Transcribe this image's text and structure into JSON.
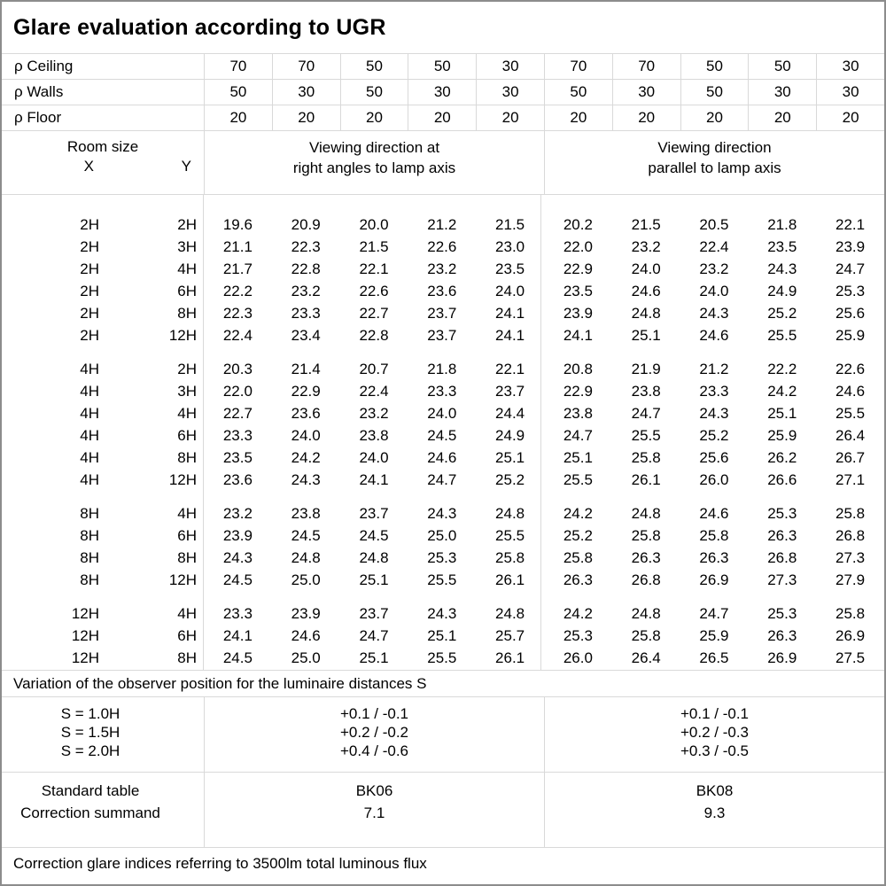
{
  "title": "Glare evaluation according to UGR",
  "reflectance": {
    "ceiling_label": "ρ Ceiling",
    "walls_label": "ρ Walls",
    "floor_label": "ρ Floor",
    "ceiling": [
      "70",
      "70",
      "50",
      "50",
      "30",
      "70",
      "70",
      "50",
      "50",
      "30"
    ],
    "walls": [
      "50",
      "30",
      "50",
      "30",
      "30",
      "50",
      "30",
      "50",
      "30",
      "30"
    ],
    "floor": [
      "20",
      "20",
      "20",
      "20",
      "20",
      "20",
      "20",
      "20",
      "20",
      "20"
    ]
  },
  "header": {
    "room_size_label": "Room size",
    "x_label": "X",
    "y_label": "Y",
    "left_heading_line1": "Viewing direction at",
    "left_heading_line2": "right angles to lamp axis",
    "right_heading_line1": "Viewing direction",
    "right_heading_line2": "parallel to lamp axis"
  },
  "ugr_blocks": [
    {
      "x_group": "2H",
      "rows": [
        {
          "x": "2H",
          "y": "2H",
          "values": [
            "19.6",
            "20.9",
            "20.0",
            "21.2",
            "21.5",
            "20.2",
            "21.5",
            "20.5",
            "21.8",
            "22.1"
          ]
        },
        {
          "x": "2H",
          "y": "3H",
          "values": [
            "21.1",
            "22.3",
            "21.5",
            "22.6",
            "23.0",
            "22.0",
            "23.2",
            "22.4",
            "23.5",
            "23.9"
          ]
        },
        {
          "x": "2H",
          "y": "4H",
          "values": [
            "21.7",
            "22.8",
            "22.1",
            "23.2",
            "23.5",
            "22.9",
            "24.0",
            "23.2",
            "24.3",
            "24.7"
          ]
        },
        {
          "x": "2H",
          "y": "6H",
          "values": [
            "22.2",
            "23.2",
            "22.6",
            "23.6",
            "24.0",
            "23.5",
            "24.6",
            "24.0",
            "24.9",
            "25.3"
          ]
        },
        {
          "x": "2H",
          "y": "8H",
          "values": [
            "22.3",
            "23.3",
            "22.7",
            "23.7",
            "24.1",
            "23.9",
            "24.8",
            "24.3",
            "25.2",
            "25.6"
          ]
        },
        {
          "x": "2H",
          "y": "12H",
          "values": [
            "22.4",
            "23.4",
            "22.8",
            "23.7",
            "24.1",
            "24.1",
            "25.1",
            "24.6",
            "25.5",
            "25.9"
          ]
        }
      ]
    },
    {
      "x_group": "4H",
      "rows": [
        {
          "x": "4H",
          "y": "2H",
          "values": [
            "20.3",
            "21.4",
            "20.7",
            "21.8",
            "22.1",
            "20.8",
            "21.9",
            "21.2",
            "22.2",
            "22.6"
          ]
        },
        {
          "x": "4H",
          "y": "3H",
          "values": [
            "22.0",
            "22.9",
            "22.4",
            "23.3",
            "23.7",
            "22.9",
            "23.8",
            "23.3",
            "24.2",
            "24.6"
          ]
        },
        {
          "x": "4H",
          "y": "4H",
          "values": [
            "22.7",
            "23.6",
            "23.2",
            "24.0",
            "24.4",
            "23.8",
            "24.7",
            "24.3",
            "25.1",
            "25.5"
          ]
        },
        {
          "x": "4H",
          "y": "6H",
          "values": [
            "23.3",
            "24.0",
            "23.8",
            "24.5",
            "24.9",
            "24.7",
            "25.5",
            "25.2",
            "25.9",
            "26.4"
          ]
        },
        {
          "x": "4H",
          "y": "8H",
          "values": [
            "23.5",
            "24.2",
            "24.0",
            "24.6",
            "25.1",
            "25.1",
            "25.8",
            "25.6",
            "26.2",
            "26.7"
          ]
        },
        {
          "x": "4H",
          "y": "12H",
          "values": [
            "23.6",
            "24.3",
            "24.1",
            "24.7",
            "25.2",
            "25.5",
            "26.1",
            "26.0",
            "26.6",
            "27.1"
          ]
        }
      ]
    },
    {
      "x_group": "8H",
      "rows": [
        {
          "x": "8H",
          "y": "4H",
          "values": [
            "23.2",
            "23.8",
            "23.7",
            "24.3",
            "24.8",
            "24.2",
            "24.8",
            "24.6",
            "25.3",
            "25.8"
          ]
        },
        {
          "x": "8H",
          "y": "6H",
          "values": [
            "23.9",
            "24.5",
            "24.5",
            "25.0",
            "25.5",
            "25.2",
            "25.8",
            "25.8",
            "26.3",
            "26.8"
          ]
        },
        {
          "x": "8H",
          "y": "8H",
          "values": [
            "24.3",
            "24.8",
            "24.8",
            "25.3",
            "25.8",
            "25.8",
            "26.3",
            "26.3",
            "26.8",
            "27.3"
          ]
        },
        {
          "x": "8H",
          "y": "12H",
          "values": [
            "24.5",
            "25.0",
            "25.1",
            "25.5",
            "26.1",
            "26.3",
            "26.8",
            "26.9",
            "27.3",
            "27.9"
          ]
        }
      ]
    },
    {
      "x_group": "12H",
      "rows": [
        {
          "x": "12H",
          "y": "4H",
          "values": [
            "23.3",
            "23.9",
            "23.7",
            "24.3",
            "24.8",
            "24.2",
            "24.8",
            "24.7",
            "25.3",
            "25.8"
          ]
        },
        {
          "x": "12H",
          "y": "6H",
          "values": [
            "24.1",
            "24.6",
            "24.7",
            "25.1",
            "25.7",
            "25.3",
            "25.8",
            "25.9",
            "26.3",
            "26.9"
          ]
        },
        {
          "x": "12H",
          "y": "8H",
          "values": [
            "24.5",
            "25.0",
            "25.1",
            "25.5",
            "26.1",
            "26.0",
            "26.4",
            "26.5",
            "26.9",
            "27.5"
          ]
        }
      ]
    }
  ],
  "variation_note": "Variation of the observer position for the luminaire distances S",
  "variation": {
    "s_labels": [
      "S = 1.0H",
      "S = 1.5H",
      "S = 2.0H"
    ],
    "left_values": [
      "+0.1 / -0.1",
      "+0.2 / -0.2",
      "+0.4 / -0.6"
    ],
    "right_values": [
      "+0.1 / -0.1",
      "+0.2 / -0.3",
      "+0.3 / -0.5"
    ]
  },
  "summary": {
    "row1_label": "Standard table",
    "row2_label": "Correction summand",
    "left": {
      "table": "BK06",
      "summand": "7.1"
    },
    "right": {
      "table": "BK08",
      "summand": "9.3"
    }
  },
  "footer_note": "Correction glare indices referring to 3500lm total luminous flux",
  "colors": {
    "grid_line": "#d9d9d9",
    "outer_border": "#8c8c8c",
    "text": "#000000",
    "background": "#ffffff"
  }
}
